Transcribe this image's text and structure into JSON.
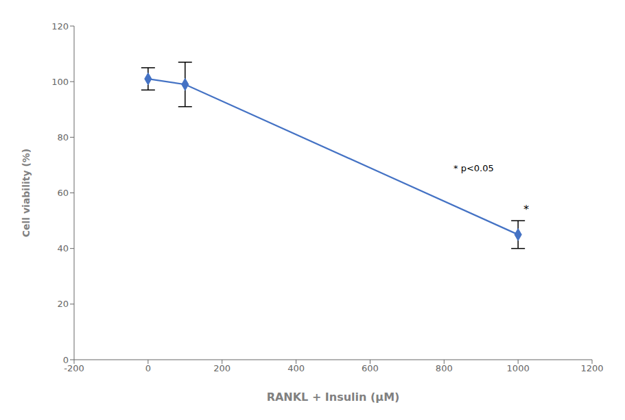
{
  "chart_data": {
    "type": "line",
    "x": [
      0,
      100,
      1000
    ],
    "values": [
      101,
      99,
      45
    ],
    "error": [
      4,
      8,
      5
    ],
    "color": "#4472C4",
    "marker": "diamond",
    "xlabel": "RANKL + Insulin (μM)",
    "ylabel": "Cell viability (%)",
    "xlim": [
      -200,
      1200
    ],
    "ylim": [
      0,
      120
    ],
    "xticks": [
      -200,
      0,
      200,
      400,
      600,
      800,
      1000,
      1200
    ],
    "yticks": [
      0,
      20,
      40,
      60,
      80,
      100,
      120
    ],
    "grid": false,
    "annotations": [
      {
        "text": "* p<0.05",
        "x": 820,
        "y": 69,
        "position": "right"
      },
      {
        "text": "*",
        "x": 1022,
        "y": 52,
        "position": "top"
      }
    ]
  }
}
